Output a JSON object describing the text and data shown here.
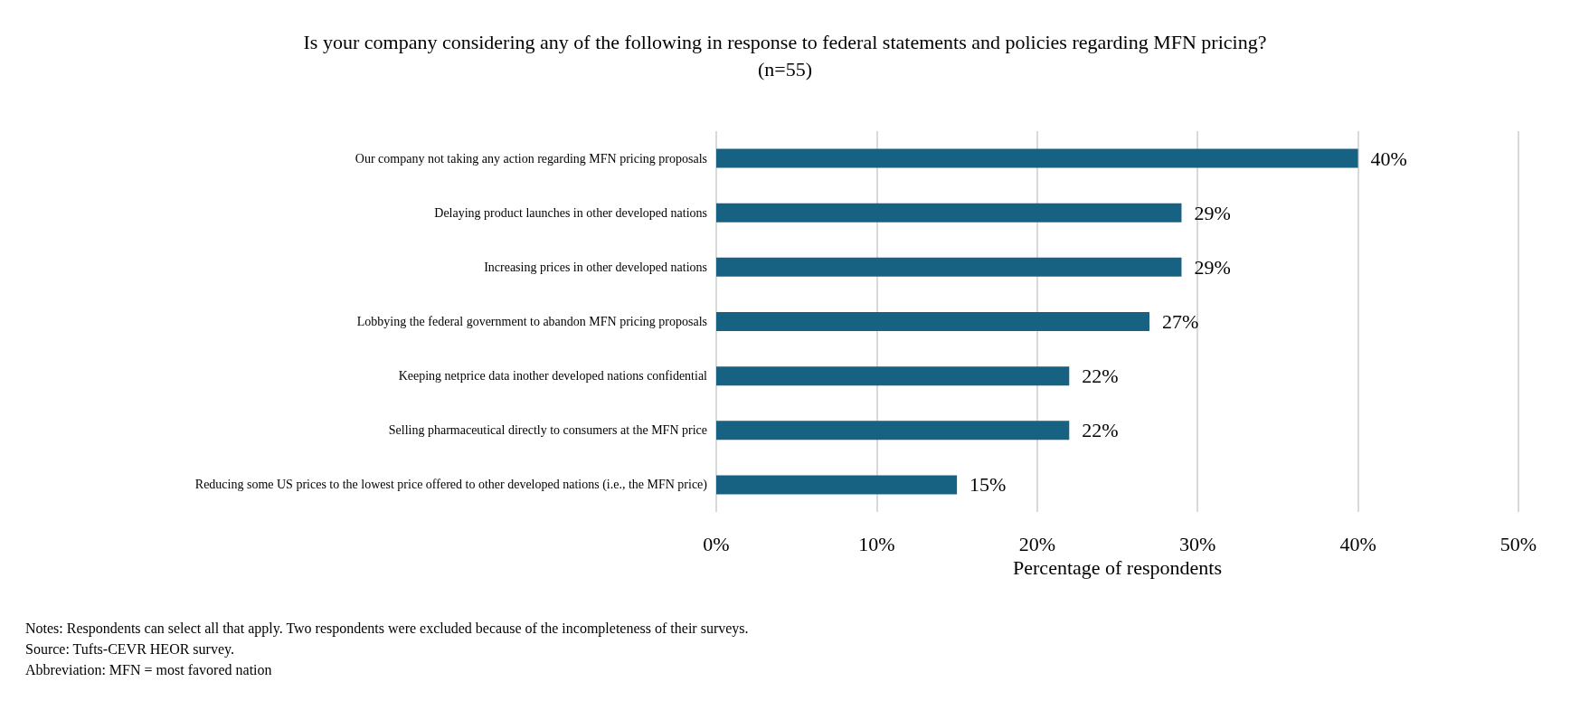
{
  "chart_data": {
    "type": "bar",
    "orientation": "horizontal",
    "title": "Is your company considering any of the following in response to federal statements and policies regarding MFN pricing?",
    "subtitle": "(n=55)",
    "categories": [
      "Our company not taking any action regarding MFN pricing proposals",
      "Delaying product launches in other developed nations",
      "Increasing prices in other developed nations",
      "Lobbying the federal government to abandon MFN pricing proposals",
      "Keeping netprice data inother developed nations confidential",
      "Selling pharmaceutical directly to consumers at the MFN price",
      "Reducing some US prices to the lowest price offered to other developed nations (i.e., the MFN price)"
    ],
    "values": [
      40,
      29,
      29,
      27,
      22,
      22,
      15
    ],
    "value_labels": [
      "40%",
      "29%",
      "29%",
      "27%",
      "22%",
      "22%",
      "15%"
    ],
    "color": "#176183",
    "xlabel": "Percentage of respondents",
    "xlim": [
      0,
      50
    ],
    "xticks": [
      {
        "value": 0,
        "label": "0%"
      },
      {
        "value": 10,
        "label": "10%"
      },
      {
        "value": 20,
        "label": "20%"
      },
      {
        "value": 30,
        "label": "30%"
      },
      {
        "value": 40,
        "label": "40%"
      },
      {
        "value": 50,
        "label": "50%"
      }
    ],
    "grid": "x",
    "annotations": [
      "Notes: Respondents can select all that apply. Two respondents were excluded because of the incompleteness of their surveys.",
      "Source: Tufts-CEVR HEOR survey.",
      "Abbreviation: MFN = most favored nation"
    ]
  }
}
